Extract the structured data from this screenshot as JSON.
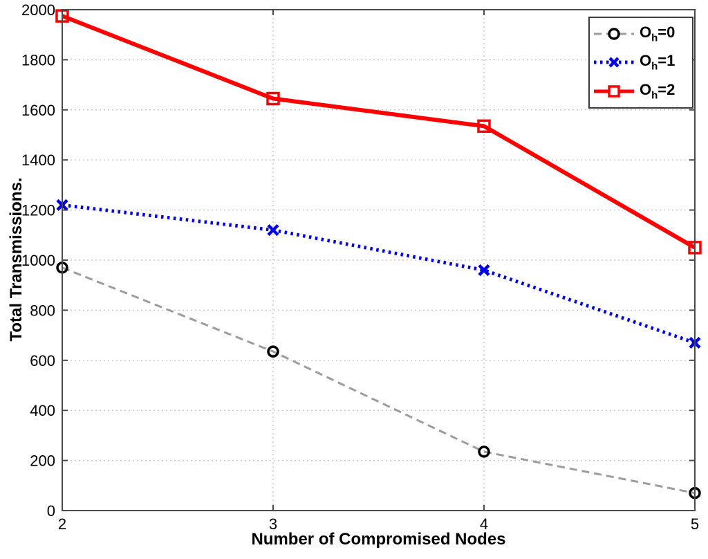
{
  "chart_data": {
    "type": "line",
    "title": "",
    "xlabel": "Number of Compromised Nodes",
    "ylabel": "Total Transmissions.",
    "x": [
      2,
      3,
      4,
      5
    ],
    "xlim": [
      2,
      5
    ],
    "ylim": [
      0,
      2000
    ],
    "xticks": [
      2,
      3,
      4,
      5
    ],
    "yticks": [
      0,
      200,
      400,
      600,
      800,
      1000,
      1200,
      1400,
      1600,
      1800,
      2000
    ],
    "grid": true,
    "legend_position": "top-right",
    "series": [
      {
        "name": "Oh=0",
        "label": {
          "base": "O",
          "sub": "h",
          "rest": "=0"
        },
        "values": [
          970,
          635,
          235,
          70
        ],
        "line_color": "#9c9c9c",
        "line_style": "dashed",
        "line_width": 3,
        "marker": "circle",
        "marker_color": "#000000",
        "marker_size": 7,
        "marker_stroke": 3.5
      },
      {
        "name": "Oh=1",
        "label": {
          "base": "O",
          "sub": "h",
          "rest": "=1"
        },
        "values": [
          1220,
          1120,
          960,
          670
        ],
        "line_color": "#0000ee",
        "line_style": "dotted",
        "line_width": 5,
        "marker": "x",
        "marker_color": "#0000ee",
        "marker_size": 7,
        "marker_stroke": 4.5
      },
      {
        "name": "Oh=2",
        "label": {
          "base": "O",
          "sub": "h",
          "rest": "=2"
        },
        "values": [
          1975,
          1645,
          1535,
          1050
        ],
        "line_color": "#ff0000",
        "line_style": "solid",
        "line_width": 6,
        "marker": "square",
        "marker_color": "#ff0000",
        "marker_size": 8,
        "marker_stroke": 3.5
      }
    ],
    "colors": {
      "background": "#ffffff",
      "grid": "#c9c9c9",
      "axis": "#4a4a4a",
      "tick_text": "#000000"
    }
  }
}
